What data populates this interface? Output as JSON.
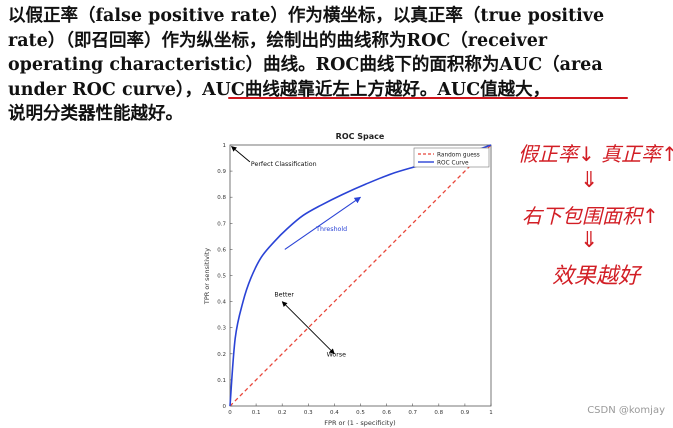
{
  "text": {
    "lines": [
      "以假正率（false positive rate）作为横坐标，以真正率（true positive",
      "rate）（即召回率）作为纵坐标，绘制出的曲线称为ROC（receiver",
      "operating characteristic）曲线。ROC曲线下的面积称为AUC（area",
      "under ROC curve），AUC曲线越靠近左上方越好。AUC值越大，",
      "说明分类器性能越好。"
    ]
  },
  "chart_data": {
    "type": "line",
    "title": "ROC Space",
    "xlabel": "FPR or (1 - specificity)",
    "ylabel": "TPR or sensitivity",
    "xlim": [
      0,
      1
    ],
    "ylim": [
      0,
      1
    ],
    "xticks": [
      "0",
      "0.1",
      "0.2",
      "0.3",
      "0.4",
      "0.5",
      "0.6",
      "0.7",
      "0.8",
      "0.9",
      "1"
    ],
    "yticks": [
      "0",
      "0.1",
      "0.2",
      "0.3",
      "0.4",
      "0.5",
      "0.6",
      "0.7",
      "0.8",
      "0.9",
      "1"
    ],
    "grid": false,
    "legend_position": "top-right",
    "series": [
      {
        "name": "Random guess",
        "color": "#e8463a",
        "style": "dashed",
        "x": [
          0,
          1
        ],
        "y": [
          0,
          1
        ]
      },
      {
        "name": "ROC Curve",
        "color": "#2a43d6",
        "style": "solid",
        "x": [
          0,
          0.02,
          0.05,
          0.08,
          0.12,
          0.17,
          0.22,
          0.28,
          0.35,
          0.43,
          0.52,
          0.62,
          0.72,
          0.82,
          0.91,
          1.0
        ],
        "y": [
          0,
          0.26,
          0.4,
          0.49,
          0.57,
          0.63,
          0.68,
          0.73,
          0.77,
          0.81,
          0.85,
          0.89,
          0.92,
          0.95,
          0.97,
          1.0
        ]
      }
    ],
    "annotations": [
      {
        "text": "Perfect Classification",
        "x": 0.08,
        "y": 0.92,
        "ax": 0,
        "ay": 1
      },
      {
        "text": "Threshold",
        "x": 0.33,
        "y": 0.67,
        "arrow_from": [
          0.21,
          0.6
        ],
        "arrow_to": [
          0.5,
          0.8
        ]
      },
      {
        "text": "Better",
        "x": 0.17,
        "y": 0.42,
        "arrow_to": [
          0.2,
          0.4
        ]
      },
      {
        "text": "Worse",
        "x": 0.37,
        "y": 0.19,
        "arrow_to": [
          0.4,
          0.2
        ]
      }
    ]
  },
  "handwriting": {
    "line1": "假正率↓ 真正率↑",
    "line2": "右下包围面积↑",
    "line3": "效果越好"
  },
  "watermark": "CSDN @komjay"
}
